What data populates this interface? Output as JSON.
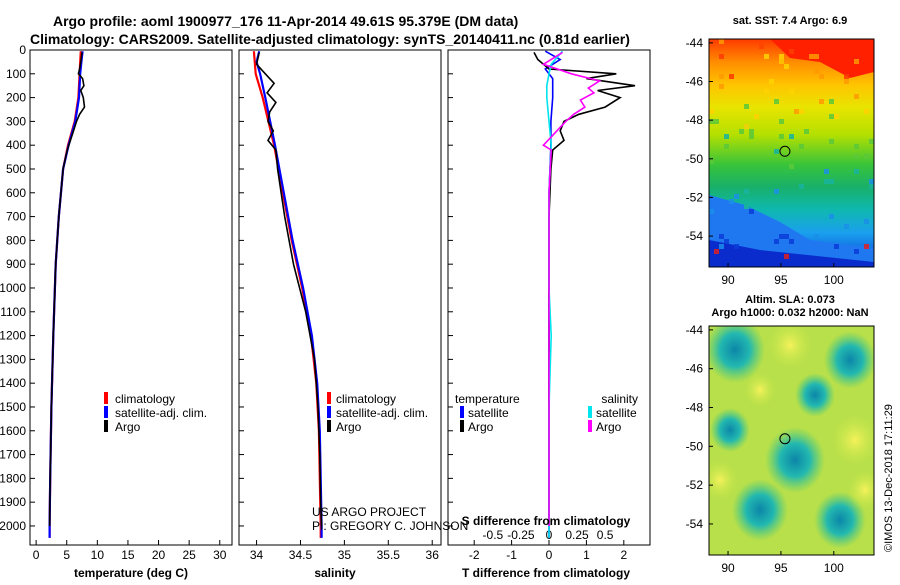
{
  "header": {
    "title_line1": "Argo profile: aoml 1900977_176 11-Apr-2014 49.61S 95.379E (DM data)",
    "title_line2": "Climatology: CARS2009. Satellite-adjusted climatology: synTS_20140411.nc (0.81d earlier)"
  },
  "colors": {
    "climatology": "#ff0000",
    "satellite_adj": "#0000ff",
    "argo": "#000000",
    "sat_salinity": "#00e5ee",
    "argo_salinity": "#ff00ff"
  },
  "depth_ticks": [
    "0",
    "100",
    "200",
    "300",
    "400",
    "500",
    "600",
    "700",
    "800",
    "900",
    "1000",
    "1100",
    "1200",
    "1300",
    "1400",
    "1500",
    "1600",
    "1700",
    "1800",
    "1900",
    "2000"
  ],
  "chart_data": [
    {
      "type": "line",
      "name": "temperature",
      "xlabel": "temperature (deg C)",
      "x_ticks": [
        "0",
        "5",
        "10",
        "15",
        "20",
        "25",
        "30"
      ],
      "xlim": [
        -1,
        32
      ],
      "ylim": [
        2080,
        0
      ],
      "legend": [
        "climatology",
        "satellite-adj. clim.",
        "Argo"
      ],
      "series": [
        {
          "name": "climatology",
          "depth": [
            5,
            50,
            100,
            150,
            200,
            300,
            400,
            500,
            700,
            900,
            1200,
            1500,
            1800,
            2000,
            2050
          ],
          "value": [
            7.3,
            7.2,
            7.1,
            7.0,
            6.9,
            6.3,
            5.2,
            4.4,
            3.7,
            3.2,
            2.8,
            2.5,
            2.3,
            2.2,
            2.2
          ]
        },
        {
          "name": "satellite-adj. clim.",
          "depth": [
            5,
            50,
            100,
            150,
            200,
            300,
            400,
            500,
            700,
            900,
            1200,
            1500,
            1800,
            2000,
            2050
          ],
          "value": [
            7.6,
            7.4,
            7.2,
            7.1,
            7.0,
            6.4,
            5.3,
            4.4,
            3.7,
            3.2,
            2.8,
            2.5,
            2.3,
            2.2,
            2.2
          ]
        },
        {
          "name": "Argo",
          "depth": [
            10,
            50,
            80,
            100,
            120,
            150,
            170,
            200,
            240,
            270,
            300,
            340,
            380,
            420,
            500,
            700,
            900,
            1200,
            1500,
            1800,
            2000
          ],
          "value": [
            7.5,
            7.3,
            7.1,
            6.9,
            7.6,
            7.8,
            7.3,
            7.7,
            7.9,
            7.1,
            6.6,
            6.1,
            5.6,
            5.1,
            4.4,
            3.7,
            3.2,
            2.8,
            2.5,
            2.3,
            2.2
          ]
        }
      ]
    },
    {
      "type": "line",
      "name": "salinity",
      "xlabel": "salinity",
      "x_ticks": [
        "34",
        "34.5",
        "35",
        "35.5",
        "36"
      ],
      "xlim": [
        33.8,
        36.1
      ],
      "ylim": [
        2080,
        0
      ],
      "legend": [
        "climatology",
        "satellite-adj. clim.",
        "Argo"
      ],
      "series": [
        {
          "name": "climatology",
          "depth": [
            5,
            100,
            200,
            400,
            600,
            800,
            1000,
            1200,
            1400,
            1600,
            1800,
            2000,
            2050
          ],
          "value": [
            33.97,
            33.99,
            34.07,
            34.2,
            34.3,
            34.4,
            34.52,
            34.62,
            34.68,
            34.71,
            34.72,
            34.73,
            34.73
          ]
        },
        {
          "name": "satellite-adj. clim.",
          "depth": [
            5,
            50,
            100,
            200,
            400,
            600,
            800,
            1000,
            1200,
            1400,
            1600,
            1800,
            2000,
            2050
          ],
          "value": [
            34.03,
            34.0,
            34.04,
            34.1,
            34.21,
            34.31,
            34.41,
            34.53,
            34.63,
            34.69,
            34.72,
            34.73,
            34.74,
            34.74
          ]
        },
        {
          "name": "Argo",
          "depth": [
            10,
            60,
            100,
            140,
            180,
            220,
            260,
            300,
            340,
            380,
            420,
            500,
            700,
            900,
            1100,
            1300,
            1500,
            1700,
            1900,
            2000
          ],
          "value": [
            34.03,
            34.0,
            34.1,
            34.2,
            34.12,
            34.22,
            34.15,
            34.13,
            34.19,
            34.13,
            34.22,
            34.24,
            34.32,
            34.42,
            34.56,
            34.66,
            34.7,
            34.72,
            34.73,
            34.74
          ]
        }
      ]
    },
    {
      "type": "line",
      "name": "difference",
      "xlabel": "T difference from climatology",
      "xlabel_top": "S difference from climatology",
      "x_ticks": [
        "-2",
        "-1.5",
        "-1",
        "-0.5",
        "0",
        "0.5",
        "1",
        "1.5",
        "2"
      ],
      "x_ticks_shown_bottom": [
        "-2",
        "-1",
        "0",
        "1",
        "2"
      ],
      "x_ticks_top": [
        "-0.5",
        "-0.25",
        "0",
        "0.25",
        "0.5"
      ],
      "xlim": [
        -2.7,
        2.7
      ],
      "ylim": [
        2080,
        0
      ],
      "legend_temperature_title": "temperature",
      "legend_salinity_title": "salinity",
      "legend_temperature": [
        "satellite",
        "Argo"
      ],
      "legend_salinity": [
        "satellite",
        "Argo"
      ],
      "series": [
        {
          "name": "T satellite",
          "depth": [
            5,
            40,
            80,
            120,
            200,
            300,
            400,
            600,
            1000,
            1500,
            2000,
            2050
          ],
          "value": [
            -0.1,
            0.3,
            -0.1,
            0.1,
            0.1,
            0.05,
            0.05,
            0.0,
            0.0,
            0.0,
            0.0,
            0.0
          ]
        },
        {
          "name": "T Argo",
          "depth": [
            10,
            40,
            80,
            100,
            120,
            150,
            170,
            200,
            240,
            270,
            300,
            340,
            380,
            420,
            500,
            700,
            1000,
            1500,
            2000
          ],
          "value": [
            -0.4,
            -0.3,
            0.0,
            1.8,
            1.0,
            2.3,
            1.3,
            1.9,
            1.5,
            0.8,
            0.4,
            0.3,
            0.4,
            0.1,
            0.05,
            0.0,
            0.0,
            0.0,
            0.0
          ]
        },
        {
          "name": "S satellite",
          "depth": [
            5,
            60,
            100,
            150,
            200,
            300,
            400,
            600,
            1000,
            1200,
            1500,
            2000,
            2050
          ],
          "value": [
            0.12,
            0.02,
            0.0,
            -0.02,
            -0.02,
            0.0,
            0.02,
            0.0,
            0.0,
            0.02,
            0.0,
            0.0,
            0.0
          ]
        },
        {
          "name": "S Argo",
          "depth": [
            10,
            60,
            100,
            130,
            160,
            180,
            210,
            240,
            270,
            300,
            350,
            400,
            420,
            600,
            1000,
            1500,
            2000
          ],
          "value": [
            0.12,
            -0.05,
            0.2,
            0.45,
            0.35,
            0.4,
            0.28,
            0.32,
            0.22,
            0.15,
            0.05,
            -0.05,
            0.02,
            0.0,
            0.0,
            0.0,
            0.0
          ]
        }
      ],
      "credit_line1": "US ARGO PROJECT",
      "credit_line2": "PI: GREGORY C. JOHNSON"
    },
    {
      "type": "heatmap",
      "name": "sst_map",
      "title": "sat. SST: 7.4 Argo: 6.9",
      "x_ticks": [
        "90",
        "95",
        "100"
      ],
      "y_ticks": [
        "-44",
        "-46",
        "-48",
        "-50",
        "-52",
        "-54"
      ],
      "xlim": [
        88.2,
        103.8
      ],
      "ylim": [
        -55.6,
        -43.8
      ],
      "marker": {
        "lon": 95.379,
        "lat": -49.61
      }
    },
    {
      "type": "heatmap",
      "name": "sla_map",
      "title_line1": "Altim. SLA: 0.073",
      "title_line2": "Argo h1000: 0.032 h2000: NaN",
      "x_ticks": [
        "90",
        "95",
        "100"
      ],
      "y_ticks": [
        "-44",
        "-46",
        "-48",
        "-50",
        "-52",
        "-54"
      ],
      "xlim": [
        88.2,
        103.8
      ],
      "ylim": [
        -55.6,
        -43.8
      ],
      "marker": {
        "lon": 95.379,
        "lat": -49.61
      }
    }
  ],
  "footer": {
    "stamp": "©IMOS 13-Dec-2018 17:11:29"
  }
}
